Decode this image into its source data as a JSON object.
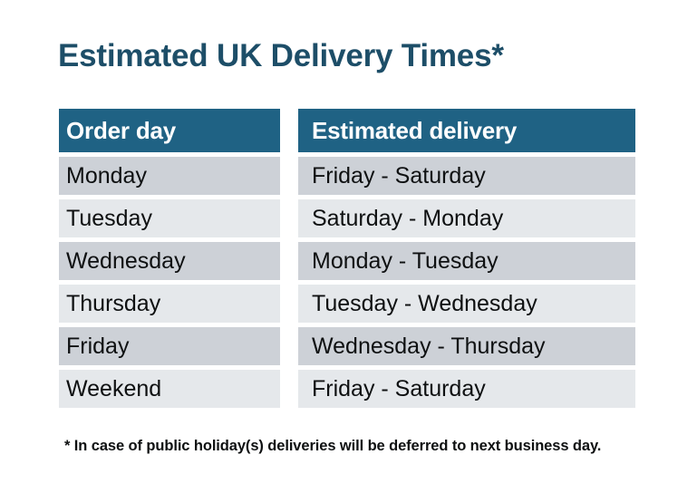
{
  "title": "Estimated UK Delivery Times*",
  "footnote": "* In case of public holiday(s) deliveries will be deferred to next business day.",
  "table": {
    "headers": [
      "Order day",
      "Estimated delivery"
    ],
    "rows": [
      [
        "Monday",
        "Friday - Saturday"
      ],
      [
        "Tuesday",
        "Saturday - Monday"
      ],
      [
        "Wednesday",
        "Monday - Tuesday"
      ],
      [
        "Thursday",
        "Tuesday - Wednesday"
      ],
      [
        "Friday",
        "Wednesday - Thursday"
      ],
      [
        "Weekend",
        "Friday - Saturday"
      ]
    ]
  },
  "colors": {
    "header_bg": "#1F6284",
    "header_text": "#FFFFFF",
    "row_dark": "#CDD1D7",
    "row_light": "#E5E8EB",
    "title_color": "#1D4E68",
    "body_text": "#0E1011"
  }
}
